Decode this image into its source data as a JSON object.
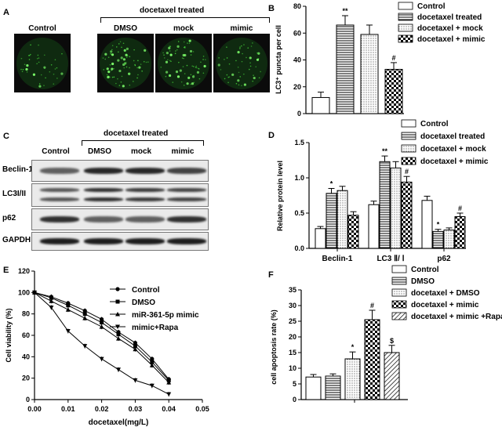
{
  "panelA": {
    "letter": "A",
    "group_label": "docetaxel treated",
    "images": [
      {
        "label": "Control",
        "density": 0.25
      },
      {
        "label": "DMSO",
        "density": 0.75
      },
      {
        "label": "mock",
        "density": 0.7
      },
      {
        "label": "mimic",
        "density": 0.4
      }
    ]
  },
  "panelC": {
    "letter": "C",
    "group_label": "docetaxel treated",
    "lanes": [
      "Control",
      "DMSO",
      "mock",
      "mimic"
    ],
    "rows": [
      {
        "label": "Beclin-1",
        "intensity": [
          0.55,
          0.85,
          0.85,
          0.7
        ]
      },
      {
        "label": "LC3I/II",
        "intensity": [
          0.6,
          0.8,
          0.75,
          0.7
        ]
      },
      {
        "label": "p62",
        "intensity": [
          0.8,
          0.55,
          0.55,
          0.8
        ]
      },
      {
        "label": "GAPDH",
        "intensity": [
          0.9,
          0.9,
          0.9,
          0.9
        ]
      }
    ]
  },
  "chart_data": [
    {
      "panel": "B",
      "type": "bar",
      "ylabel": "LC3⁺ puncta per cell",
      "ylim": [
        0,
        80
      ],
      "yticks": [
        0,
        20,
        40,
        60,
        80
      ],
      "series": [
        {
          "name": "Control",
          "values": [
            12
          ],
          "errors": [
            4
          ],
          "pattern": "white",
          "mark": ""
        },
        {
          "name": "docetaxel treated",
          "values": [
            66
          ],
          "errors": [
            7
          ],
          "pattern": "hlines",
          "mark": "**"
        },
        {
          "name": "docetaxel + mock",
          "values": [
            59
          ],
          "errors": [
            7
          ],
          "pattern": "dots",
          "mark": ""
        },
        {
          "name": "docetaxel + mimic",
          "values": [
            33
          ],
          "errors": [
            5
          ],
          "pattern": "checker",
          "mark": "#"
        }
      ]
    },
    {
      "panel": "D",
      "type": "bar",
      "ylabel": "Relative protein level",
      "ylim": [
        0,
        1.5
      ],
      "yticks": [
        0.0,
        0.5,
        1.0,
        1.5
      ],
      "categories": [
        "Beclin-1",
        "LC3 Ⅱ/ Ⅰ",
        "p62"
      ],
      "series": [
        {
          "name": "Control",
          "values": [
            0.28,
            0.62,
            0.68
          ],
          "errors": [
            0.03,
            0.05,
            0.06
          ],
          "pattern": "white",
          "marks": [
            "",
            "",
            ""
          ]
        },
        {
          "name": "docetaxel treated",
          "values": [
            0.78,
            1.23,
            0.24
          ],
          "errors": [
            0.07,
            0.08,
            0.03
          ],
          "pattern": "hlines",
          "marks": [
            "*",
            "**",
            "*"
          ]
        },
        {
          "name": "docetaxel + mock",
          "values": [
            0.82,
            1.14,
            0.26
          ],
          "errors": [
            0.06,
            0.09,
            0.03
          ],
          "pattern": "dots",
          "marks": [
            "",
            "",
            ""
          ]
        },
        {
          "name": "docetaxel + mimic",
          "values": [
            0.47,
            0.94,
            0.45
          ],
          "errors": [
            0.05,
            0.08,
            0.05
          ],
          "pattern": "checker",
          "marks": [
            "",
            "#",
            "#"
          ]
        }
      ]
    },
    {
      "panel": "E",
      "type": "line",
      "xlabel": "docetaxel(mg/L)",
      "ylabel": "Cell viability (%)",
      "xlim": [
        0,
        0.05
      ],
      "ylim": [
        0,
        120
      ],
      "xticks": [
        "0.00",
        "0.01",
        "0.02",
        "0.03",
        "0.04",
        "0.05"
      ],
      "yticks": [
        0,
        20,
        40,
        60,
        80,
        100,
        120
      ],
      "x": [
        0,
        0.005,
        0.01,
        0.015,
        0.02,
        0.025,
        0.03,
        0.035,
        0.04
      ],
      "series": [
        {
          "name": "Control",
          "marker": "circle",
          "values": [
            100,
            96,
            90,
            83,
            75,
            63,
            53,
            38,
            19
          ]
        },
        {
          "name": "DMSO",
          "marker": "square",
          "values": [
            100,
            95,
            88,
            80,
            72,
            61,
            50,
            35,
            18
          ]
        },
        {
          "name": "miR-361-5p mimic",
          "marker": "triangle",
          "values": [
            100,
            92,
            84,
            76,
            68,
            57,
            47,
            32,
            16
          ]
        },
        {
          "name": "mimic+Rapa",
          "marker": "triangle-down",
          "values": [
            100,
            86,
            64,
            50,
            38,
            28,
            18,
            13,
            5
          ]
        }
      ]
    },
    {
      "panel": "F",
      "type": "bar",
      "ylabel": "cell apoptosis rate (%)",
      "ylim": [
        0,
        35
      ],
      "yticks": [
        0,
        5,
        10,
        15,
        20,
        25,
        30,
        35
      ],
      "series": [
        {
          "name": "Control",
          "values": [
            7.2
          ],
          "errors": [
            0.8
          ],
          "pattern": "white",
          "mark": ""
        },
        {
          "name": "DMSO",
          "values": [
            7.5
          ],
          "errors": [
            0.7
          ],
          "pattern": "hlines",
          "mark": ""
        },
        {
          "name": "docetaxel + DMSO",
          "values": [
            13
          ],
          "errors": [
            2.2
          ],
          "pattern": "dots",
          "mark": "*"
        },
        {
          "name": "docetaxel + mimic",
          "values": [
            25.5
          ],
          "errors": [
            3
          ],
          "pattern": "checker",
          "mark": "#"
        },
        {
          "name": "docetaxel + mimic +Rapa",
          "values": [
            15
          ],
          "errors": [
            2.3
          ],
          "pattern": "diag",
          "mark": "$"
        }
      ]
    }
  ]
}
